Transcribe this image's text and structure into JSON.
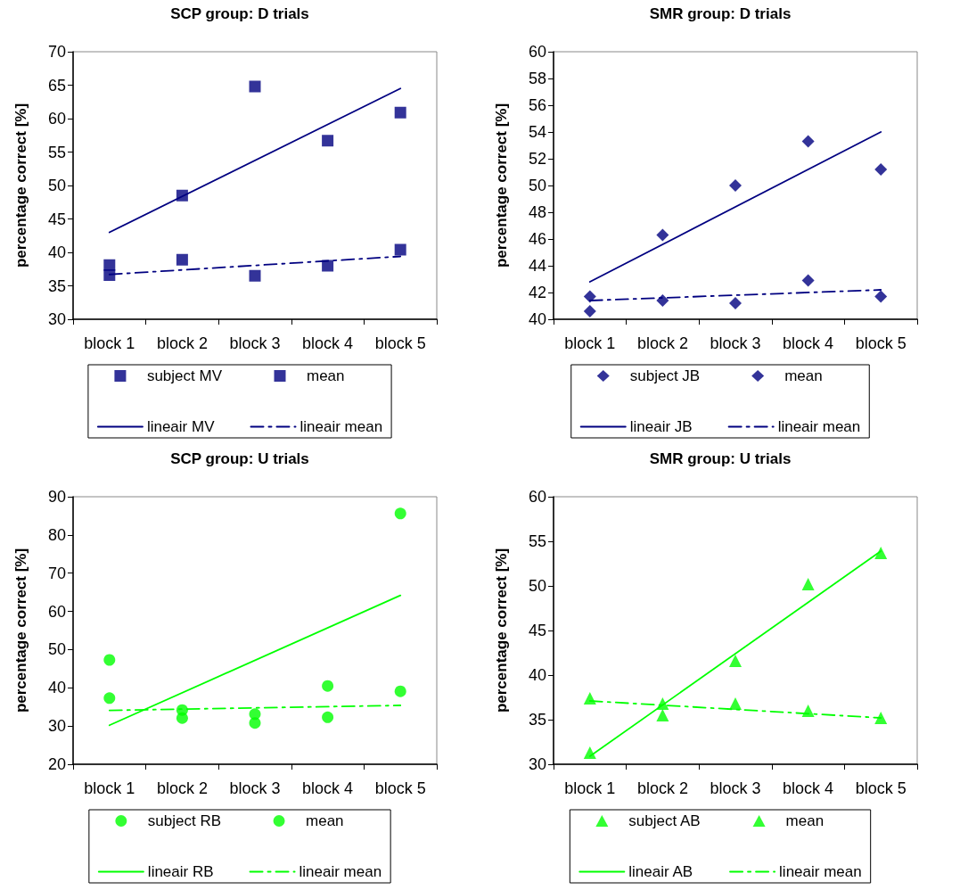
{
  "chart_data": [
    {
      "type": "scatter",
      "title": "SCP group: D trials",
      "ylabel": "percentage correct [%]",
      "categories": [
        "block 1",
        "block 2",
        "block 3",
        "block 4",
        "block 5"
      ],
      "ylim": [
        30,
        70
      ],
      "yticks": [
        30,
        35,
        40,
        45,
        50,
        55,
        60,
        65,
        70
      ],
      "grid": false,
      "legend": "bottom",
      "series": [
        {
          "name": "subject MV",
          "color": "#000080",
          "marker": "square",
          "values": [
            38.1,
            48.5,
            64.8,
            56.7,
            60.9
          ]
        },
        {
          "name": "mean",
          "color": "#000080",
          "marker": "square",
          "values": [
            36.6,
            38.9,
            36.5,
            38.0,
            40.4
          ]
        },
        {
          "name": "lineair MV",
          "type": "line",
          "color": "#000080",
          "line_style": "solid",
          "x": [
            "block 1",
            "block 5"
          ],
          "values": [
            43.0,
            64.5
          ]
        },
        {
          "name": "lineair mean",
          "type": "line",
          "color": "#000080",
          "line_style": "dashed",
          "x": [
            "block 1",
            "block 5"
          ],
          "values": [
            36.7,
            39.4
          ]
        }
      ]
    },
    {
      "type": "scatter",
      "title": "SMR group: D trials",
      "ylabel": "percentage correct [%]",
      "categories": [
        "block 1",
        "block 2",
        "block 3",
        "block 4",
        "block 5"
      ],
      "ylim": [
        40,
        60
      ],
      "yticks": [
        40,
        42,
        44,
        46,
        48,
        50,
        52,
        54,
        56,
        58,
        60
      ],
      "grid": false,
      "legend": "bottom",
      "series": [
        {
          "name": "subject JB",
          "color": "#000080",
          "marker": "diamond",
          "values": [
            40.6,
            46.3,
            50.0,
            53.3,
            51.2
          ]
        },
        {
          "name": "mean",
          "color": "#000080",
          "marker": "diamond",
          "values": [
            41.7,
            41.4,
            41.2,
            42.9,
            41.7
          ]
        },
        {
          "name": "lineair JB",
          "type": "line",
          "color": "#000080",
          "line_style": "solid",
          "x": [
            "block 1",
            "block 5"
          ],
          "values": [
            42.8,
            54.0
          ]
        },
        {
          "name": "lineair mean",
          "type": "line",
          "color": "#000080",
          "line_style": "dashed",
          "x": [
            "block 1",
            "block 5"
          ],
          "values": [
            41.4,
            42.2
          ]
        }
      ]
    },
    {
      "type": "scatter",
      "title": "SCP group: U trials",
      "ylabel": "percentage correct [%]",
      "categories": [
        "block 1",
        "block 2",
        "block 3",
        "block 4",
        "block 5"
      ],
      "ylim": [
        20,
        90
      ],
      "yticks": [
        20,
        30,
        40,
        50,
        60,
        70,
        80,
        90
      ],
      "grid": false,
      "legend": "bottom",
      "series": [
        {
          "name": "subject RB",
          "color": "#00ff00",
          "marker": "circle",
          "values": [
            47.3,
            32.1,
            30.8,
            40.5,
            85.6
          ]
        },
        {
          "name": "mean",
          "color": "#00ff00",
          "marker": "circle",
          "values": [
            37.3,
            34.2,
            33.1,
            32.3,
            39.1
          ]
        },
        {
          "name": "lineair RB",
          "type": "line",
          "color": "#00ff00",
          "line_style": "solid",
          "x": [
            "block 1",
            "block 5"
          ],
          "values": [
            30.2,
            64.2
          ]
        },
        {
          "name": "lineair mean",
          "type": "line",
          "color": "#00ff00",
          "line_style": "dashed",
          "x": [
            "block 1",
            "block 5"
          ],
          "values": [
            34.1,
            35.4
          ]
        }
      ]
    },
    {
      "type": "scatter",
      "title": "SMR group: U trials",
      "ylabel": "percentage correct [%]",
      "categories": [
        "block 1",
        "block 2",
        "block 3",
        "block 4",
        "block 5"
      ],
      "ylim": [
        30,
        60
      ],
      "yticks": [
        30,
        35,
        40,
        45,
        50,
        55,
        60
      ],
      "grid": false,
      "legend": "bottom",
      "series": [
        {
          "name": "subject AB",
          "color": "#00ff00",
          "marker": "triangle",
          "values": [
            31.3,
            35.5,
            41.6,
            50.2,
            53.7
          ]
        },
        {
          "name": "mean",
          "color": "#00ff00",
          "marker": "triangle",
          "values": [
            37.4,
            36.8,
            36.8,
            36.0,
            35.2
          ]
        },
        {
          "name": "lineair AB",
          "type": "line",
          "color": "#00ff00",
          "line_style": "solid",
          "x": [
            "block 1",
            "block 5"
          ],
          "values": [
            30.9,
            53.9
          ]
        },
        {
          "name": "lineair mean",
          "type": "line",
          "color": "#00ff00",
          "line_style": "dashed",
          "x": [
            "block 1",
            "block 5"
          ],
          "values": [
            37.1,
            35.2
          ]
        }
      ]
    }
  ]
}
